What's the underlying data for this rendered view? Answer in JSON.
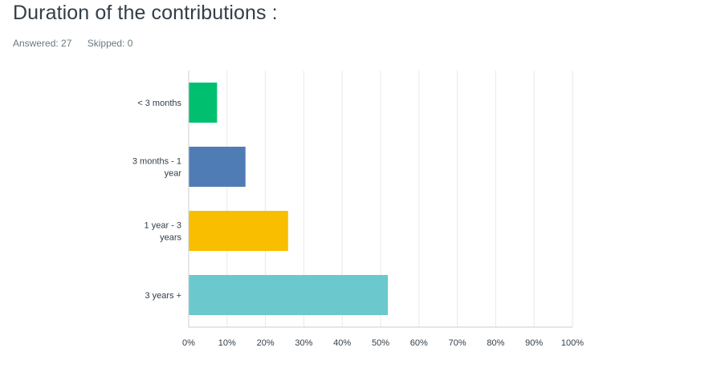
{
  "header": {
    "title": "Duration of the contributions :",
    "answered": "Answered: 27",
    "skipped": "Skipped: 0"
  },
  "chart_data": {
    "type": "bar",
    "orientation": "horizontal",
    "categories": [
      "< 3 months",
      "3 months - 1 year",
      "1 year - 3 years",
      "3 years +"
    ],
    "category_label_lines": [
      [
        "< 3 months"
      ],
      [
        "3 months - 1",
        "year"
      ],
      [
        "1 year - 3",
        "years"
      ],
      [
        "3 years +"
      ]
    ],
    "values": [
      7.4,
      14.8,
      25.9,
      51.9
    ],
    "colors": [
      "#00bf6f",
      "#507cb6",
      "#f9be00",
      "#6bc8cd"
    ],
    "xlim": [
      0,
      100
    ],
    "ticks": [
      "0%",
      "10%",
      "20%",
      "30%",
      "40%",
      "50%",
      "60%",
      "70%",
      "80%",
      "90%",
      "100%"
    ],
    "grid": true
  }
}
